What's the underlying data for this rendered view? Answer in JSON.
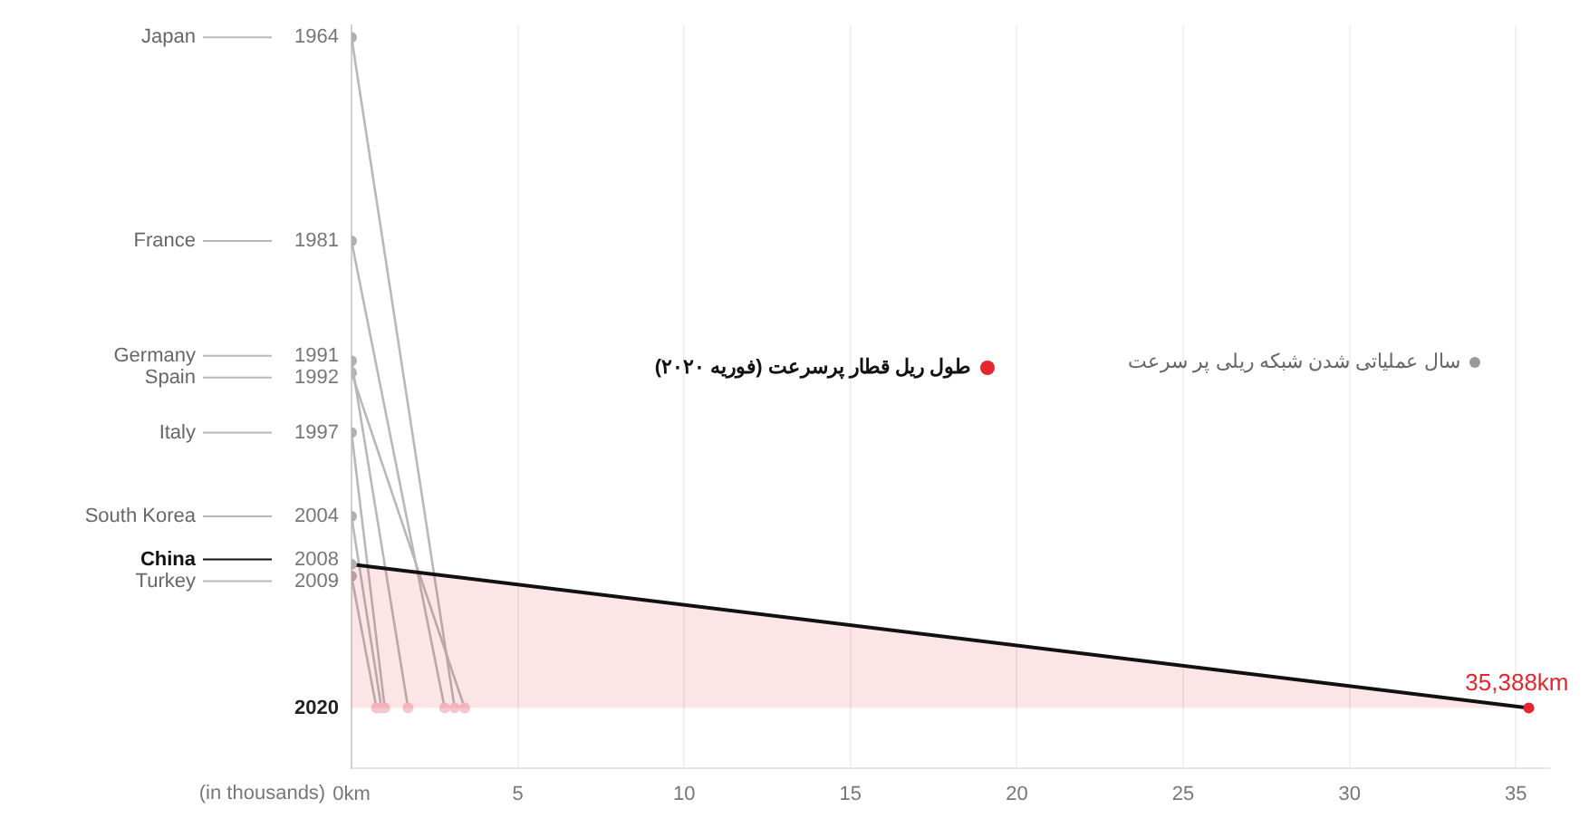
{
  "chart_data": {
    "type": "line",
    "xlabel": "(in thousands)",
    "annotations": [
      "سال عملیاتی شدن شبکه ریلی پر سرعت",
      "طول ریل قطار پرسرعت (فوریه ۲۰۲۰)",
      {
        "text": "35,388km",
        "x": 35.388,
        "y": 2020
      }
    ],
    "xlim": [
      0,
      36
    ],
    "xticks": [
      {
        "value": 0,
        "label": "0km"
      },
      5,
      10,
      15,
      20,
      25,
      30,
      35
    ],
    "ylim": [
      2025,
      1963
    ],
    "yticks": [
      1964,
      1981,
      1991,
      1992,
      1997,
      2004,
      2008,
      2009,
      2020
    ],
    "grid": "x",
    "marker": "circle",
    "legend": "left",
    "series": [
      {
        "name": "Japan",
        "color": "#b8b8b8",
        "colors": [
          "#b0b0b0",
          "#f5c6cc"
        ],
        "x": [
          0,
          3.1
        ],
        "values": [
          1964,
          2020
        ]
      },
      {
        "name": "France",
        "color": "#b8b8b8",
        "colors": [
          "#b0b0b0",
          "#f5c6cc"
        ],
        "x": [
          0,
          2.8
        ],
        "values": [
          1981,
          2020
        ]
      },
      {
        "name": "Germany",
        "color": "#b8b8b8",
        "colors": [
          "#b0b0b0",
          "#f5c6cc"
        ],
        "x": [
          0,
          1.7
        ],
        "values": [
          1991,
          2020
        ]
      },
      {
        "name": "Spain",
        "color": "#b8b8b8",
        "colors": [
          "#b0b0b0",
          "#f5c6cc"
        ],
        "x": [
          0,
          3.4
        ],
        "values": [
          1992,
          2020
        ]
      },
      {
        "name": "Italy",
        "color": "#b8b8b8",
        "colors": [
          "#b0b0b0",
          "#f5c6cc"
        ],
        "x": [
          0,
          1.0
        ],
        "values": [
          1997,
          2020
        ]
      },
      {
        "name": "South Korea",
        "color": "#b8b8b8",
        "colors": [
          "#b0b0b0",
          "#f5c6cc"
        ],
        "x": [
          0,
          0.9
        ],
        "values": [
          2004,
          2020
        ]
      },
      {
        "name": "China",
        "type": "area",
        "color": "#111111",
        "colors": [
          "#b0b0b0",
          "#e3262f"
        ],
        "x": [
          0,
          35.388
        ],
        "values": [
          2008,
          2020
        ]
      },
      {
        "name": "Turkey",
        "color": "#b8b8b8",
        "colors": [
          "#b0b0b0",
          "#f5c6cc"
        ],
        "x": [
          0,
          0.75
        ],
        "values": [
          2009,
          2020
        ]
      }
    ]
  }
}
